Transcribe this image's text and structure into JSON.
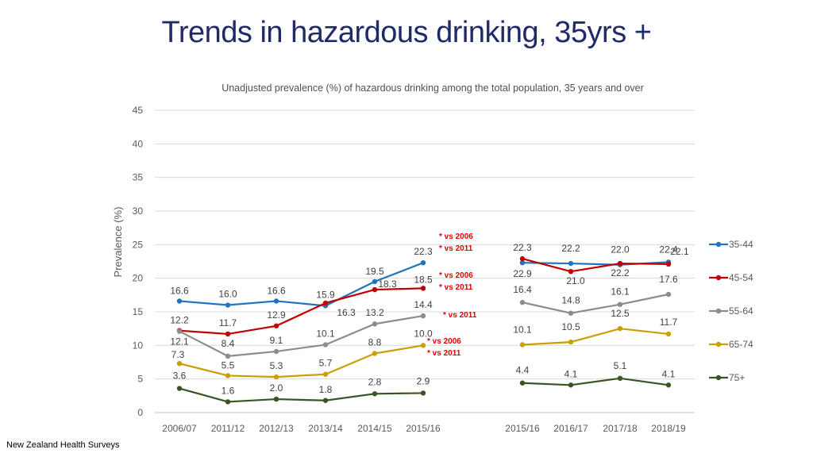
{
  "chart_data": {
    "type": "line",
    "title": "Trends in hazardous drinking, 35yrs +",
    "subtitle": "Unadjusted prevalence (%) of hazardous drinking among the total population, 35 years and over",
    "ylabel": "Prevalence (%)",
    "xlabel": "",
    "ylim": [
      0,
      45
    ],
    "yticks": [
      "0",
      "5",
      "10",
      "15",
      "20",
      "25",
      "30",
      "35",
      "40",
      "45"
    ],
    "groups": [
      {
        "name": "group-a",
        "categories": [
          "2006/07",
          "2011/12",
          "2012/13",
          "2013/14",
          "2014/15",
          "2015/16"
        ]
      },
      {
        "name": "group-b",
        "categories": [
          "2015/16",
          "2016/17",
          "2017/18",
          "2018/19"
        ]
      }
    ],
    "series": [
      {
        "name": "35-44",
        "color": "#1f74bd",
        "group_a": [
          16.6,
          16.0,
          16.6,
          15.9,
          19.5,
          22.3
        ],
        "group_b": [
          22.3,
          22.2,
          22.0,
          22.4
        ]
      },
      {
        "name": "45-54",
        "color": "#c00000",
        "group_a": [
          12.2,
          11.7,
          12.9,
          16.3,
          18.3,
          18.5
        ],
        "group_b": [
          22.9,
          21.0,
          22.2,
          22.1
        ]
      },
      {
        "name": "55-64",
        "color": "#8c8c8c",
        "group_a": [
          12.1,
          8.4,
          9.1,
          10.1,
          13.2,
          14.4
        ],
        "group_b": [
          16.4,
          14.8,
          16.1,
          17.6
        ]
      },
      {
        "name": "65-74",
        "color": "#c9a000",
        "group_a": [
          7.3,
          5.5,
          5.3,
          5.7,
          8.8,
          10.0
        ],
        "group_b": [
          10.1,
          10.5,
          12.5,
          11.7
        ]
      },
      {
        "name": "75+",
        "color": "#375623",
        "group_a": [
          3.6,
          1.6,
          2.0,
          1.8,
          2.8,
          2.9
        ],
        "group_b": [
          4.4,
          4.1,
          5.1,
          4.1
        ]
      }
    ],
    "data_labels_a": [
      [
        "16.6",
        "16.0",
        "16.6",
        "15.9",
        "19.5",
        "22.3"
      ],
      [
        "12.2",
        "11.7",
        "12.9",
        "16.3",
        "18.3",
        "18.5"
      ],
      [
        "12.1",
        "8.4",
        "9.1",
        "10.1",
        "13.2",
        "14.4"
      ],
      [
        "7.3",
        "5.5",
        "5.3",
        "5.7",
        "8.8",
        "10.0"
      ],
      [
        "3.6",
        "1.6",
        "2.0",
        "1.8",
        "2.8",
        "2.9"
      ]
    ],
    "data_labels_b": [
      [
        "22.3",
        "22.2",
        "22.0",
        "22.4"
      ],
      [
        "22.9",
        "21.0",
        "22.2",
        "22.1"
      ],
      [
        "16.4",
        "14.8",
        "16.1",
        "17.6"
      ],
      [
        "10.1",
        "10.5",
        "12.5",
        "11.7"
      ],
      [
        "4.4",
        "4.1",
        "5.1",
        "4.1"
      ]
    ],
    "annotations": [
      {
        "series": "35-44",
        "lines": [
          "* vs 2006",
          "* vs 2011"
        ]
      },
      {
        "series": "45-54",
        "lines": [
          "* vs 2006",
          "* vs 2011"
        ]
      },
      {
        "series": "55-64",
        "lines": [
          "* vs 2011"
        ]
      },
      {
        "series": "65-74",
        "lines": [
          "* vs 2006",
          "* vs 2011"
        ]
      }
    ],
    "legend_position": "right",
    "grid": true
  },
  "footer": "New Zealand Health Surveys"
}
